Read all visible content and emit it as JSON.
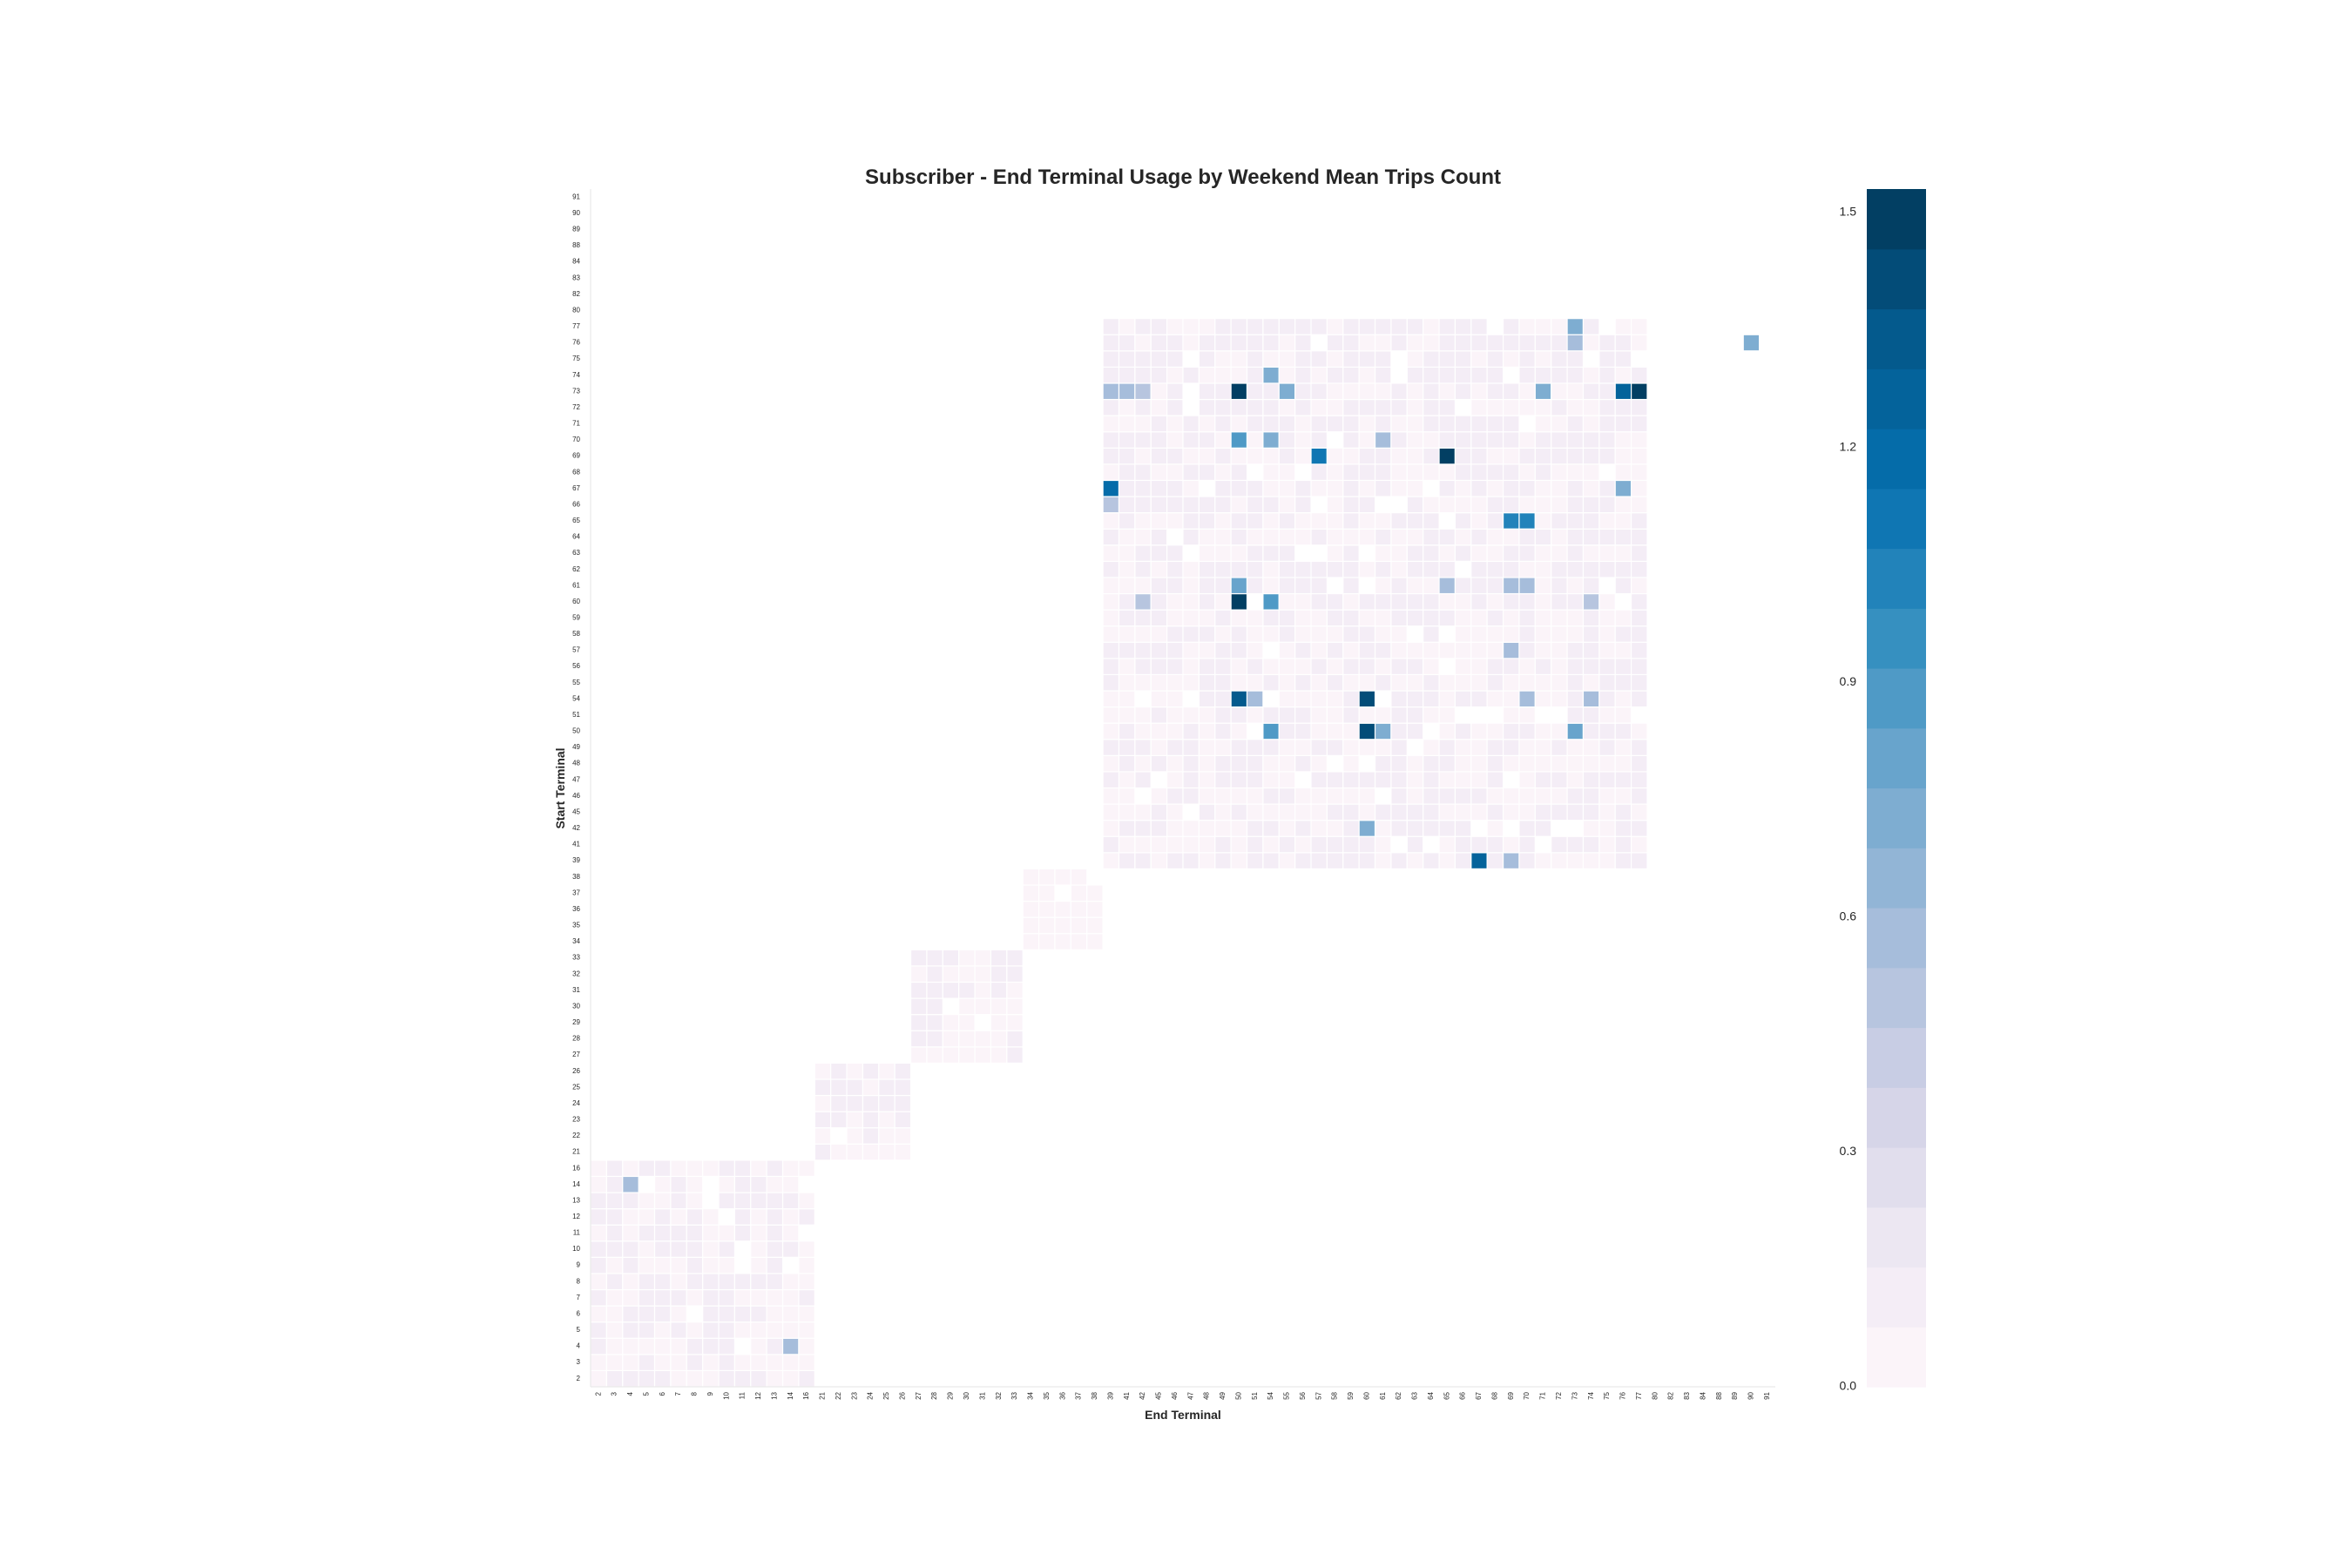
{
  "chart_data": {
    "type": "heatmap",
    "title": "Subscriber - End Terminal Usage by Weekend Mean Trips Count",
    "xlabel": "End Terminal",
    "ylabel": "Start Terminal",
    "x_categories": [
      "2",
      "3",
      "4",
      "5",
      "6",
      "7",
      "8",
      "9",
      "10",
      "11",
      "12",
      "13",
      "14",
      "16",
      "21",
      "22",
      "23",
      "24",
      "25",
      "26",
      "27",
      "28",
      "29",
      "30",
      "31",
      "32",
      "33",
      "34",
      "35",
      "36",
      "37",
      "38",
      "39",
      "41",
      "42",
      "45",
      "46",
      "47",
      "48",
      "49",
      "50",
      "51",
      "54",
      "55",
      "56",
      "57",
      "58",
      "59",
      "60",
      "61",
      "62",
      "63",
      "64",
      "65",
      "66",
      "67",
      "68",
      "69",
      "70",
      "71",
      "72",
      "73",
      "74",
      "75",
      "76",
      "77",
      "80",
      "82",
      "83",
      "84",
      "88",
      "89",
      "90",
      "91"
    ],
    "y_categories": [
      "2",
      "3",
      "4",
      "5",
      "6",
      "7",
      "8",
      "9",
      "10",
      "11",
      "12",
      "13",
      "14",
      "16",
      "21",
      "22",
      "23",
      "24",
      "25",
      "26",
      "27",
      "28",
      "29",
      "30",
      "31",
      "32",
      "33",
      "34",
      "35",
      "36",
      "37",
      "38",
      "39",
      "41",
      "42",
      "45",
      "46",
      "47",
      "48",
      "49",
      "50",
      "51",
      "54",
      "55",
      "56",
      "57",
      "58",
      "59",
      "60",
      "61",
      "62",
      "63",
      "64",
      "65",
      "66",
      "67",
      "68",
      "69",
      "70",
      "71",
      "72",
      "73",
      "74",
      "75",
      "76",
      "77",
      "80",
      "82",
      "83",
      "84",
      "88",
      "89",
      "90",
      "91"
    ],
    "value_range": [
      0,
      1.53
    ],
    "colormap": "PuBu",
    "colorbar": {
      "ticks": [
        0.0,
        0.3,
        0.6,
        0.9,
        1.2,
        1.5
      ],
      "tick_labels": [
        "0.0",
        "0.3",
        "0.6",
        "0.9",
        "1.2",
        "1.5"
      ],
      "levels": 20,
      "placement": "right"
    },
    "grid": false,
    "notable_cells": [
      {
        "start": "73",
        "end": "50",
        "value": 1.5
      },
      {
        "start": "73",
        "end": "77",
        "value": 1.5
      },
      {
        "start": "73",
        "end": "76",
        "value": 1.3
      },
      {
        "start": "73",
        "end": "39",
        "value": 0.6
      },
      {
        "start": "73",
        "end": "41",
        "value": 0.6
      },
      {
        "start": "73",
        "end": "42",
        "value": 0.5
      },
      {
        "start": "73",
        "end": "55",
        "value": 0.7
      },
      {
        "start": "73",
        "end": "71",
        "value": 0.7
      },
      {
        "start": "69",
        "end": "65",
        "value": 1.5
      },
      {
        "start": "69",
        "end": "57",
        "value": 1.1
      },
      {
        "start": "70",
        "end": "50",
        "value": 0.9
      },
      {
        "start": "70",
        "end": "54",
        "value": 0.7
      },
      {
        "start": "70",
        "end": "61",
        "value": 0.6
      },
      {
        "start": "67",
        "end": "39",
        "value": 1.2
      },
      {
        "start": "67",
        "end": "76",
        "value": 0.7
      },
      {
        "start": "66",
        "end": "39",
        "value": 0.5
      },
      {
        "start": "65",
        "end": "69",
        "value": 1.0
      },
      {
        "start": "65",
        "end": "70",
        "value": 1.0
      },
      {
        "start": "61",
        "end": "50",
        "value": 0.8
      },
      {
        "start": "61",
        "end": "69",
        "value": 0.6
      },
      {
        "start": "61",
        "end": "70",
        "value": 0.6
      },
      {
        "start": "61",
        "end": "65",
        "value": 0.6
      },
      {
        "start": "60",
        "end": "50",
        "value": 1.5
      },
      {
        "start": "60",
        "end": "54",
        "value": 0.9
      },
      {
        "start": "60",
        "end": "42",
        "value": 0.5
      },
      {
        "start": "60",
        "end": "74",
        "value": 0.5
      },
      {
        "start": "54",
        "end": "50",
        "value": 1.35
      },
      {
        "start": "54",
        "end": "51",
        "value": 0.6
      },
      {
        "start": "54",
        "end": "60",
        "value": 1.4
      },
      {
        "start": "54",
        "end": "70",
        "value": 0.6
      },
      {
        "start": "54",
        "end": "74",
        "value": 0.6
      },
      {
        "start": "50",
        "end": "54",
        "value": 0.9
      },
      {
        "start": "50",
        "end": "60",
        "value": 1.4
      },
      {
        "start": "50",
        "end": "61",
        "value": 0.7
      },
      {
        "start": "50",
        "end": "73",
        "value": 0.8
      },
      {
        "start": "42",
        "end": "60",
        "value": 0.7
      },
      {
        "start": "39",
        "end": "67",
        "value": 1.3
      },
      {
        "start": "39",
        "end": "69",
        "value": 0.6
      },
      {
        "start": "77",
        "end": "73",
        "value": 0.7
      },
      {
        "start": "76",
        "end": "73",
        "value": 0.6
      },
      {
        "start": "76",
        "end": "90",
        "value": 0.7
      },
      {
        "start": "74",
        "end": "54",
        "value": 0.7
      },
      {
        "start": "57",
        "end": "69",
        "value": 0.6
      },
      {
        "start": "14",
        "end": "4",
        "value": 0.6
      },
      {
        "start": "4",
        "end": "14",
        "value": 0.6
      }
    ],
    "blocks": [
      {
        "start_range": [
          "2",
          "16"
        ],
        "end_range": [
          "2",
          "16"
        ],
        "typical_value": 0.1
      },
      {
        "start_range": [
          "21",
          "26"
        ],
        "end_range": [
          "21",
          "26"
        ],
        "typical_value": 0.1
      },
      {
        "start_range": [
          "27",
          "33"
        ],
        "end_range": [
          "27",
          "33"
        ],
        "typical_value": 0.1
      },
      {
        "start_range": [
          "34",
          "38"
        ],
        "end_range": [
          "34",
          "38"
        ],
        "typical_value": 0.05
      },
      {
        "start_range": [
          "39",
          "77"
        ],
        "end_range": [
          "39",
          "77"
        ],
        "typical_value": 0.1
      }
    ]
  }
}
